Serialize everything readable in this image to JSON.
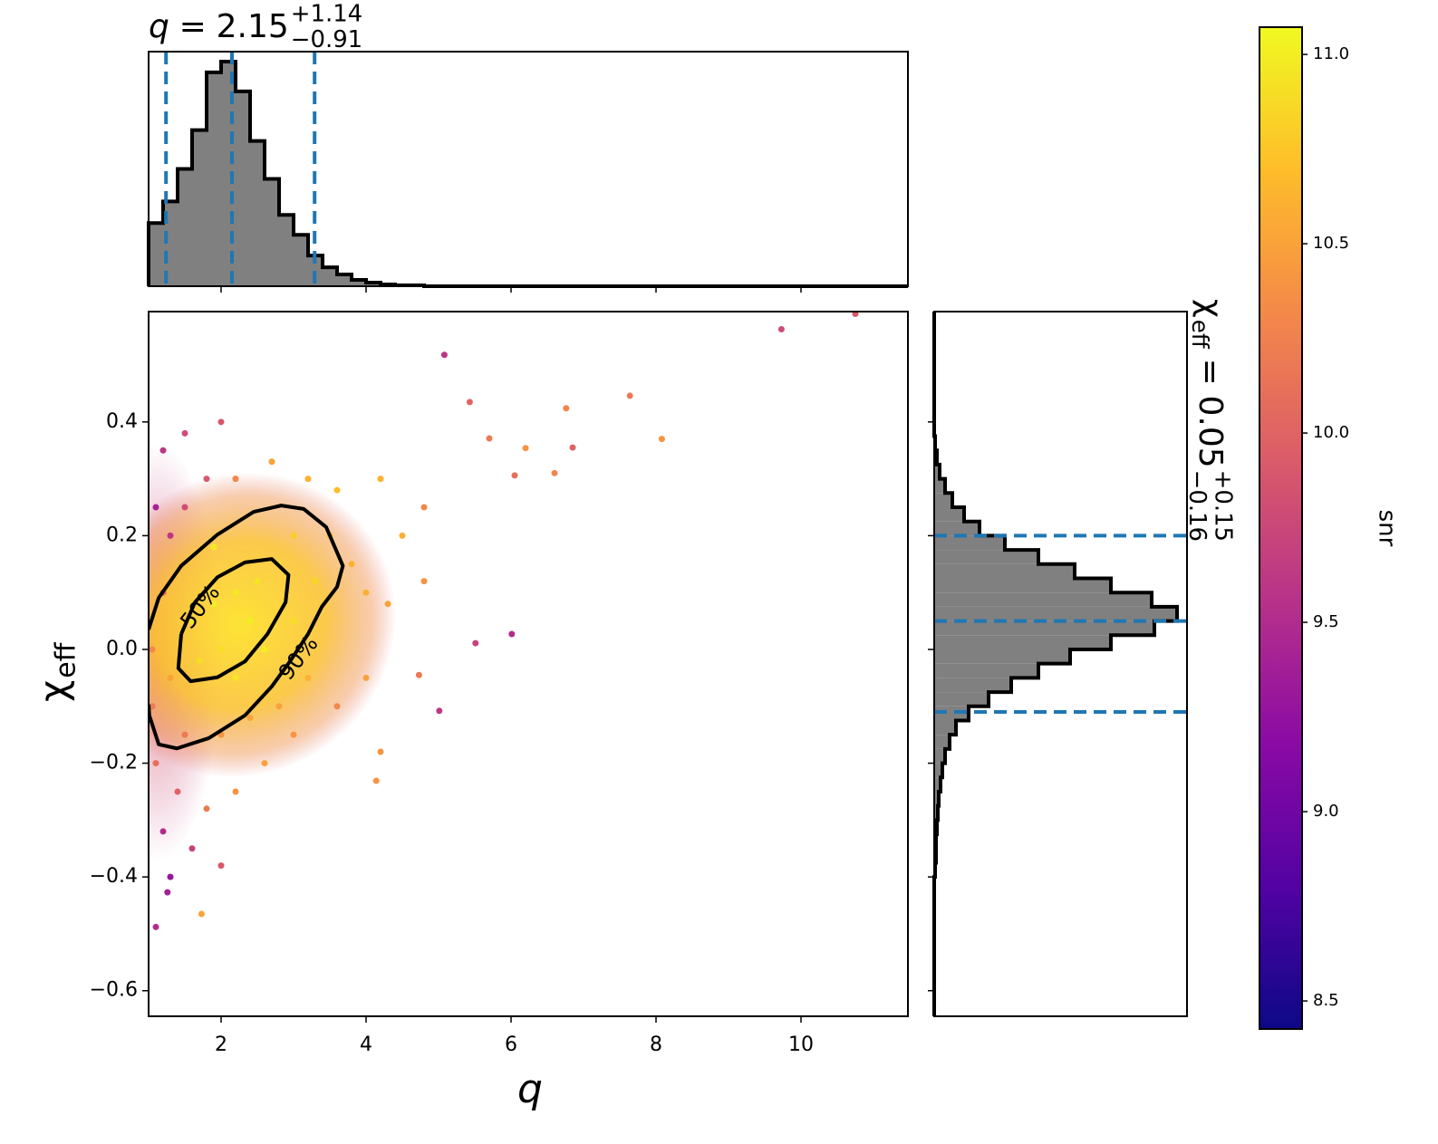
{
  "chart_data": [
    {
      "type": "histogram",
      "orientation": "vertical",
      "title": {
        "symbol": "q",
        "relation": "=",
        "median": "2.15",
        "plus": "+1.14",
        "minus": "−0.91"
      },
      "bins": [
        1,
        1.2,
        1.4,
        1.6,
        1.8,
        2,
        2.2,
        2.4,
        2.6,
        2.8,
        3,
        3.2,
        3.4,
        3.6,
        3.8,
        4,
        4.2,
        4.4,
        4.6,
        4.8,
        5
      ],
      "values": [
        70,
        94,
        130,
        173,
        237,
        249,
        216,
        161,
        119,
        79,
        57,
        34,
        21,
        13,
        7,
        4,
        2,
        1,
        1,
        0
      ],
      "color": "#808080",
      "edge_color": "#000000",
      "xlim": [
        1,
        11.475
      ],
      "ylim": [
        0,
        260
      ],
      "xticks": [
        2,
        4,
        6,
        8,
        10
      ],
      "quantiles": [
        1.24,
        2.15,
        3.29
      ],
      "quantile_color": "#1f77b4"
    },
    {
      "type": "scatter",
      "xlabel": "q",
      "ylabel": {
        "symbol": "χ",
        "subscript": "eff"
      },
      "xlim": [
        1,
        11.475
      ],
      "ylim": [
        -0.645,
        0.594
      ],
      "xticks": [
        2,
        4,
        6,
        8,
        10
      ],
      "yticks": [
        {
          "value": -0.6,
          "label": "−0.6"
        },
        {
          "value": -0.4,
          "label": "−0.4"
        },
        {
          "value": -0.2,
          "label": "−0.2"
        },
        {
          "value": 0,
          "label": "0.0"
        },
        0.2,
        0.4
      ],
      "points": {
        "x": [
          1.6,
          1.9,
          2.2,
          2.5,
          2.0,
          1.7,
          2.4,
          2.8,
          3.0,
          3.3,
          3.5,
          3.8,
          4.0,
          4.3,
          4.5,
          3.2,
          2.8,
          2.4,
          2.0,
          1.5,
          1.3,
          1.2,
          1.3,
          1.5,
          1.8,
          2.2,
          2.7,
          3.2,
          3.6,
          1.1,
          1.2,
          1.5,
          2.0,
          1.1,
          1.4,
          1.8,
          2.2,
          1.2,
          1.6,
          2.0,
          1.3,
          2.6,
          3.0,
          3.6,
          4.0,
          4.8,
          4.8,
          4.2,
          1.05,
          1.05,
          2.6,
          2.2,
          1.9,
          3.0,
          9.73,
          5.08,
          5.43,
          7.64,
          6.76,
          8.08,
          5.7,
          6.2,
          6.85,
          6.05,
          6.6,
          6.01,
          5.51,
          4.73,
          5.01,
          4.2,
          4.14,
          1.73,
          1.1,
          1.26,
          10.75
        ],
        "y": [
          0.05,
          0.08,
          0.1,
          0.12,
          0.0,
          -0.02,
          0.05,
          0.15,
          0.2,
          0.12,
          0.2,
          0.15,
          0.1,
          0.08,
          0.2,
          -0.05,
          -0.1,
          -0.12,
          -0.15,
          -0.15,
          -0.05,
          0.1,
          0.2,
          0.25,
          0.3,
          0.3,
          0.33,
          0.3,
          0.28,
          0.25,
          0.35,
          0.38,
          0.4,
          -0.2,
          -0.25,
          -0.28,
          -0.25,
          -0.32,
          -0.35,
          -0.38,
          -0.4,
          -0.2,
          -0.15,
          -0.1,
          -0.05,
          0.12,
          0.25,
          0.3,
          0.0,
          -0.1,
          0.0,
          -0.05,
          0.18,
          0.05,
          0.563,
          0.518,
          0.435,
          0.446,
          0.424,
          0.37,
          0.371,
          0.354,
          0.355,
          0.306,
          0.31,
          0.027,
          0.011,
          -0.045,
          -0.108,
          -0.18,
          -0.231,
          -0.465,
          -0.488,
          -0.427,
          0.59
        ],
        "c": [
          10.95,
          11.0,
          10.98,
          10.95,
          10.9,
          10.9,
          11.0,
          10.9,
          10.8,
          10.85,
          10.7,
          10.6,
          10.6,
          10.5,
          10.6,
          10.6,
          10.5,
          10.5,
          10.4,
          10.2,
          10.5,
          10.0,
          9.6,
          9.8,
          9.9,
          10.3,
          10.5,
          10.6,
          10.7,
          9.4,
          9.6,
          9.8,
          9.9,
          10.1,
          10.0,
          10.2,
          10.4,
          9.5,
          9.7,
          9.9,
          9.3,
          10.5,
          10.4,
          10.3,
          10.5,
          10.4,
          10.3,
          10.6,
          10.3,
          10.2,
          11.0,
          10.95,
          10.98,
          10.9,
          9.8,
          9.6,
          10.0,
          10.2,
          10.3,
          10.4,
          10.2,
          10.4,
          10.0,
          10.1,
          10.3,
          9.5,
          9.7,
          10.2,
          9.6,
          10.4,
          10.4,
          10.5,
          9.5,
          9.4,
          9.9
        ]
      },
      "contours": [
        {
          "label": "50%",
          "x": [
            1.45,
            1.64,
            1.95,
            2.33,
            2.7,
            2.93,
            2.89,
            2.64,
            2.33,
            1.95,
            1.58,
            1.41,
            1.45
          ],
          "y": [
            0.027,
            0.083,
            0.127,
            0.153,
            0.159,
            0.131,
            0.083,
            0.027,
            -0.021,
            -0.049,
            -0.056,
            -0.033,
            0.027
          ]
        },
        {
          "label": "90%",
          "x": [
            1.0,
            1.14,
            1.45,
            1.95,
            2.45,
            2.83,
            3.14,
            3.45,
            3.68,
            3.6,
            3.39,
            3.2,
            2.95,
            2.7,
            2.33,
            1.83,
            1.39,
            1.14,
            1.01,
            1.0
          ],
          "y": [
            0.035,
            0.091,
            0.147,
            0.202,
            0.242,
            0.253,
            0.247,
            0.215,
            0.147,
            0.11,
            0.075,
            0.027,
            -0.021,
            -0.065,
            -0.116,
            -0.156,
            -0.174,
            -0.167,
            -0.116,
            -0.097
          ]
        }
      ],
      "contour_color": "#000000"
    },
    {
      "type": "histogram",
      "orientation": "horizontal",
      "title": {
        "symbol": "χ",
        "subscript": "eff",
        "relation": "=",
        "median": "0.05",
        "plus": "+0.15",
        "minus": "−0.16"
      },
      "bins": [
        -0.4,
        -0.375,
        -0.35,
        -0.325,
        -0.3,
        -0.275,
        -0.25,
        -0.225,
        -0.2,
        -0.175,
        -0.15,
        -0.125,
        -0.1,
        -0.075,
        -0.05,
        -0.025,
        0,
        0.025,
        0.05,
        0.075,
        0.1,
        0.125,
        0.15,
        0.175,
        0.2,
        0.225,
        0.25,
        0.275,
        0.3,
        0.325,
        0.35,
        0.375
      ],
      "values": [
        1,
        2,
        2,
        3,
        4,
        5,
        7,
        9,
        12,
        17,
        24,
        38,
        60,
        85,
        115,
        150,
        195,
        243,
        268,
        240,
        195,
        155,
        115,
        78,
        50,
        33,
        20,
        12,
        6,
        3,
        1
      ],
      "color": "#808080",
      "edge_color": "#000000",
      "xlim": [
        0,
        279
      ],
      "ylim": [
        -0.645,
        0.594
      ],
      "quantiles": [
        -0.11,
        0.05,
        0.2
      ],
      "quantile_color": "#1f77b4"
    },
    {
      "type": "colorbar",
      "label": "snr",
      "lim": [
        8.426,
        11.072
      ],
      "ticks": [
        8.5,
        {
          "value": 9,
          "label": "9.0"
        },
        9.5,
        {
          "value": 10,
          "label": "10.0"
        },
        10.5,
        {
          "value": 11,
          "label": "11.0"
        }
      ],
      "colormap": [
        "#0d0887",
        "#5302a3",
        "#8b0aa5",
        "#b83289",
        "#db5c68",
        "#f48849",
        "#febd2a",
        "#f0f921"
      ]
    }
  ]
}
